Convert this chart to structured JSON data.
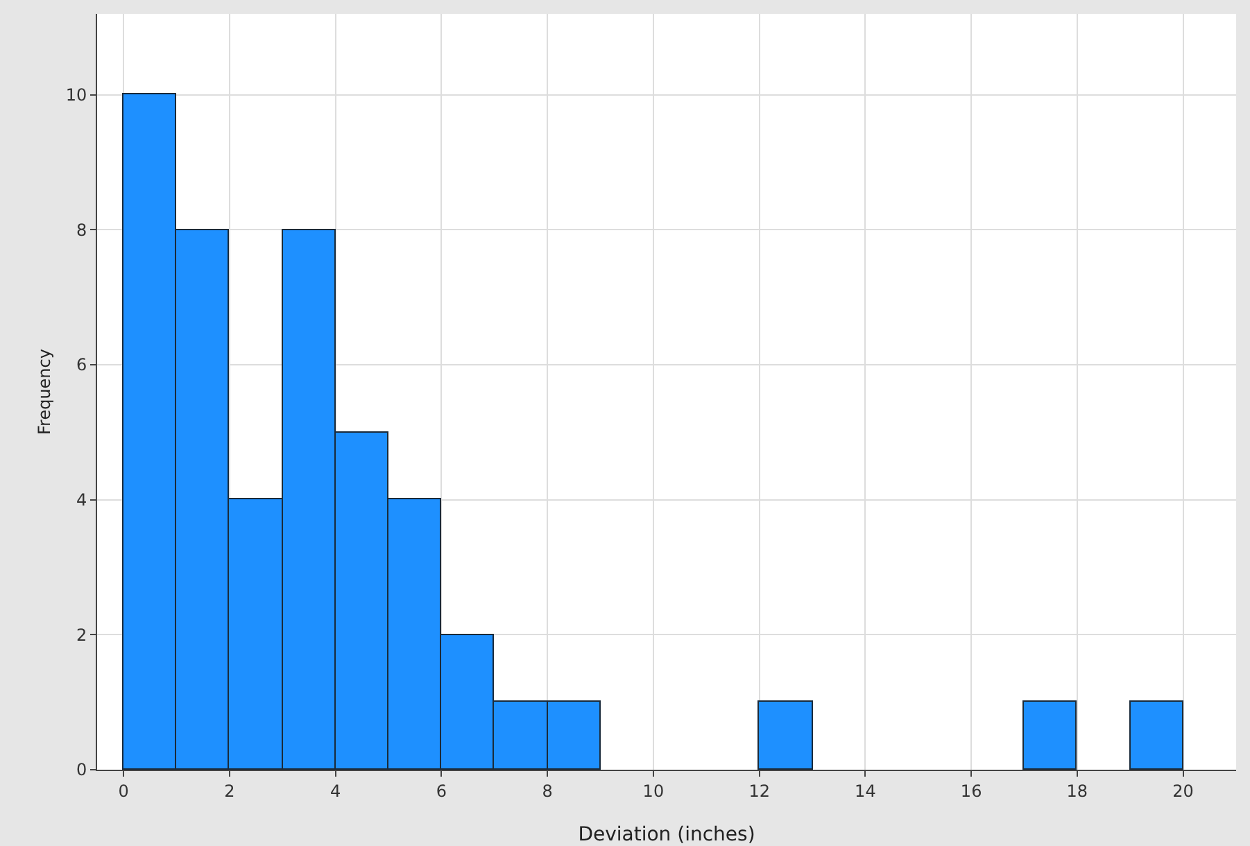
{
  "chart_data": {
    "type": "histogram",
    "xlabel": "Deviation (inches)",
    "ylabel": "Frequency",
    "bins": [
      0,
      1,
      2,
      3,
      4,
      5,
      6,
      7,
      8,
      9,
      10,
      11,
      12,
      13,
      14,
      15,
      16,
      17,
      18,
      19,
      20
    ],
    "values": [
      10,
      8,
      4,
      8,
      5,
      4,
      2,
      1,
      1,
      0,
      0,
      0,
      1,
      0,
      0,
      0,
      0,
      1,
      0,
      1
    ],
    "color": "#1e90ff",
    "xlim": [
      -0.5,
      21
    ],
    "xticks": [
      0,
      2,
      4,
      6,
      8,
      10,
      12,
      14,
      16,
      18,
      20
    ],
    "ylim": [
      0,
      11.2
    ],
    "yticks": [
      0,
      2,
      4,
      6,
      8,
      10
    ],
    "grid": true
  }
}
